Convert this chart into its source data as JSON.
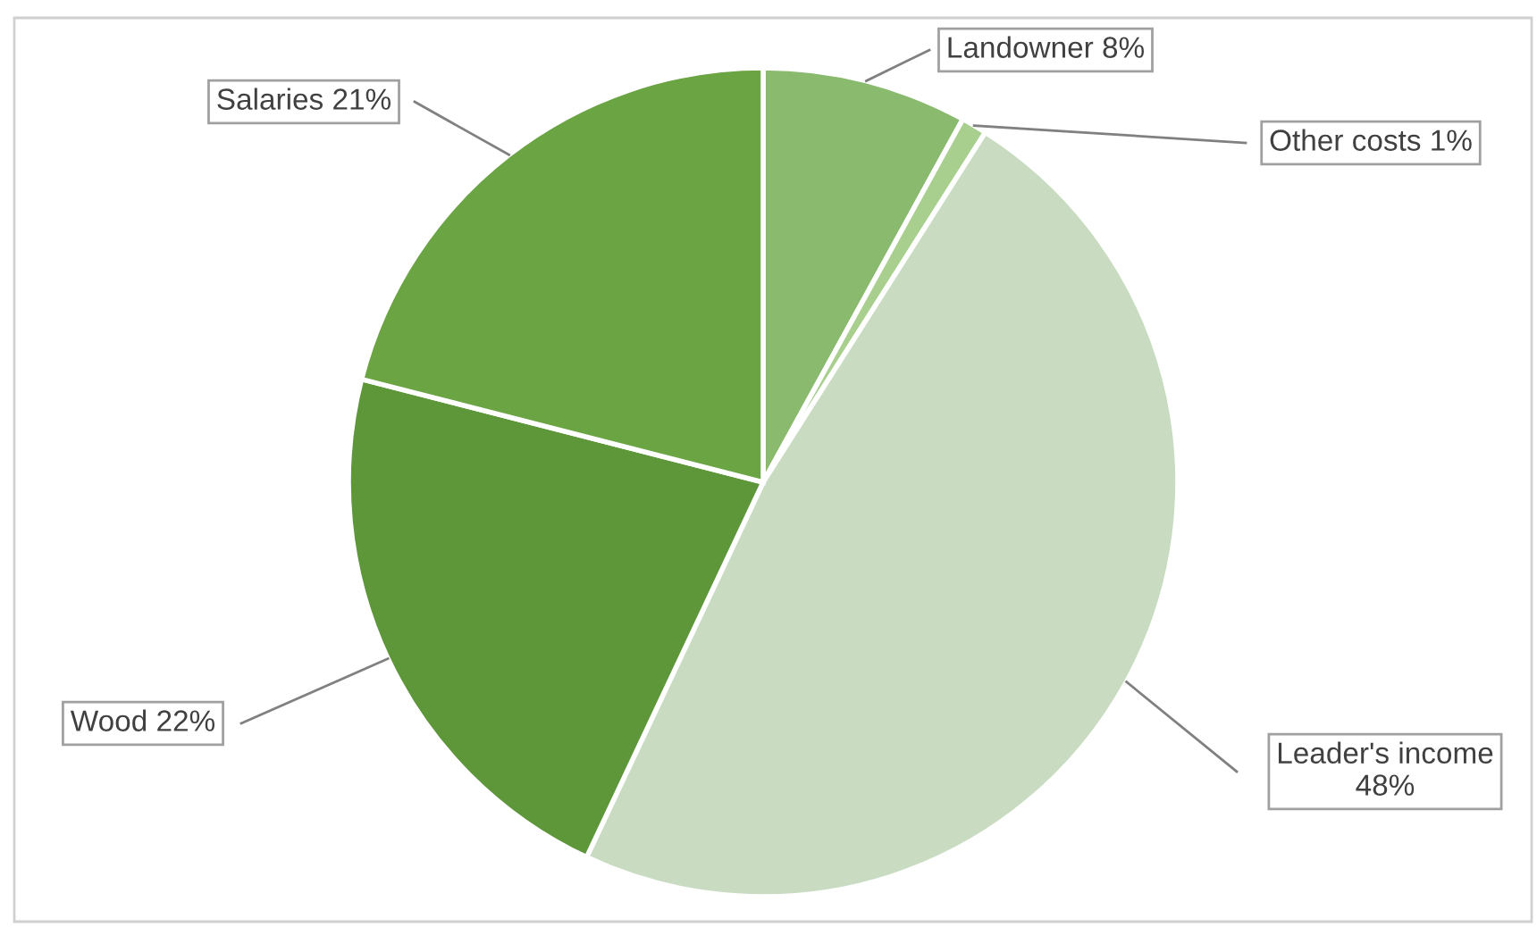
{
  "chart_data": {
    "type": "pie",
    "categories": [
      "Landowner",
      "Other costs",
      "Leader's income",
      "Wood",
      "Salaries"
    ],
    "values": [
      8,
      1,
      48,
      22,
      21
    ],
    "value_labels": [
      "8%",
      "1%",
      "48%",
      "22%",
      "21%"
    ],
    "colors": [
      "#8aba6e",
      "#a9cf8f",
      "#c9dcc2",
      "#5e963a",
      "#6aa443"
    ],
    "legend": false
  }
}
